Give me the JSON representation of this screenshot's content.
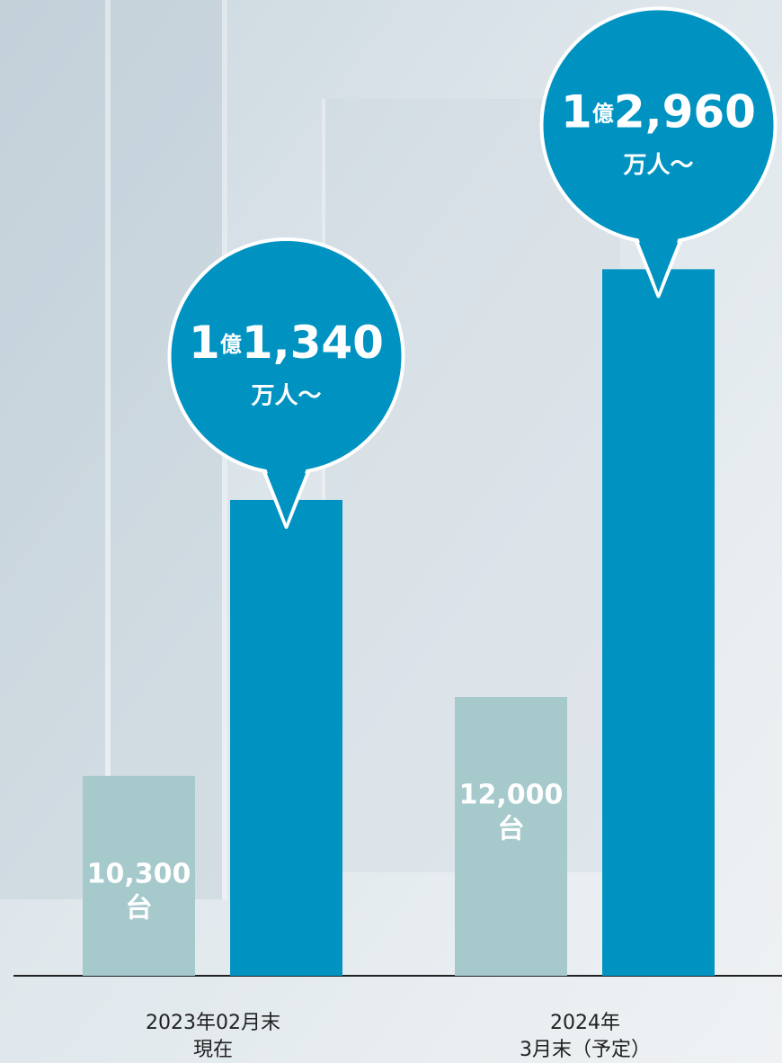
{
  "chart_data": {
    "type": "bar",
    "categories": [
      [
        "2023年02月末",
        "現在"
      ],
      [
        "2024年",
        "3月末（予定）"
      ]
    ],
    "series": [
      {
        "color": "#a6c9cc",
        "values": [
          10300,
          12000
        ],
        "value_labels": [
          "10,300",
          "12,000"
        ],
        "unit": "台"
      },
      {
        "color": "#0093c2",
        "values": [
          11340,
          12960
        ],
        "value_labels": [
          "1億1,340",
          "1億2,960"
        ],
        "unit": "万人～",
        "axis": "y2"
      }
    ],
    "ylim": [
      6000,
      27000
    ],
    "y2lim": [
      8000,
      14850
    ]
  }
}
